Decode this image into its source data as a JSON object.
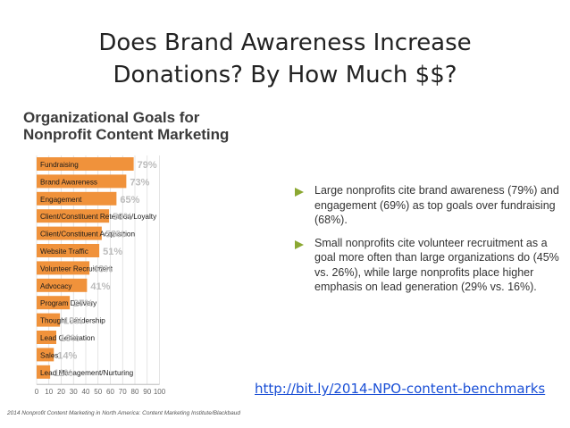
{
  "slide": {
    "title_line1": "Does Brand Awareness Increase",
    "title_line2": "Donations? By How Much $$?"
  },
  "chart_data": {
    "type": "bar",
    "orientation": "horizontal",
    "title": "Organizational Goals for Nonprofit Content Marketing",
    "title_line1": "Organizational Goals for",
    "title_line2": "Nonprofit Content Marketing",
    "categories": [
      "Fundraising",
      "Brand Awareness",
      "Engagement",
      "Client/Constituent Retention/Loyalty",
      "Client/Constituent Acquisition",
      "Website Traffic",
      "Volunteer Recruitment",
      "Advocacy",
      "Program Delivery",
      "Thought Leadership",
      "Lead Generation",
      "Sales",
      "Lead Management/Nurturing"
    ],
    "values": [
      79,
      73,
      65,
      59,
      53,
      51,
      43,
      41,
      27,
      19,
      16,
      14,
      11
    ],
    "value_labels": [
      "79%",
      "73%",
      "65%",
      "59%",
      "53%",
      "51%",
      "43%",
      "41%",
      "27%",
      "19%",
      "16%",
      "14%",
      "11%"
    ],
    "xlim": [
      0,
      100
    ],
    "xticks": [
      "0",
      "10",
      "20",
      "30",
      "40",
      "50",
      "60",
      "70",
      "80",
      "90",
      "100"
    ],
    "grid": true,
    "colors": {
      "bar": "#f0923b",
      "bar_label": "#bcbcbc",
      "grid": "#d9d9d9"
    },
    "source": "2014 Nonprofit Content Marketing in North America: Content Marketing Institute/Blackbaud"
  },
  "notes": [
    {
      "icon": "triangle-bullet-icon",
      "text": "Large nonprofits cite brand awareness (79%) and engagement (69%) as top goals over fundraising (68%)."
    },
    {
      "icon": "triangle-bullet-icon",
      "text": "Small nonprofits cite volunteer recruitment as a goal more often than large organizations do (45% vs. 26%), while large nonprofits place higher emphasis on lead generation (29% vs. 16%)."
    }
  ],
  "notes_bullet_color": "#8ba832",
  "link": {
    "label": "http://bit.ly/2014-NPO-content-benchmarks"
  }
}
